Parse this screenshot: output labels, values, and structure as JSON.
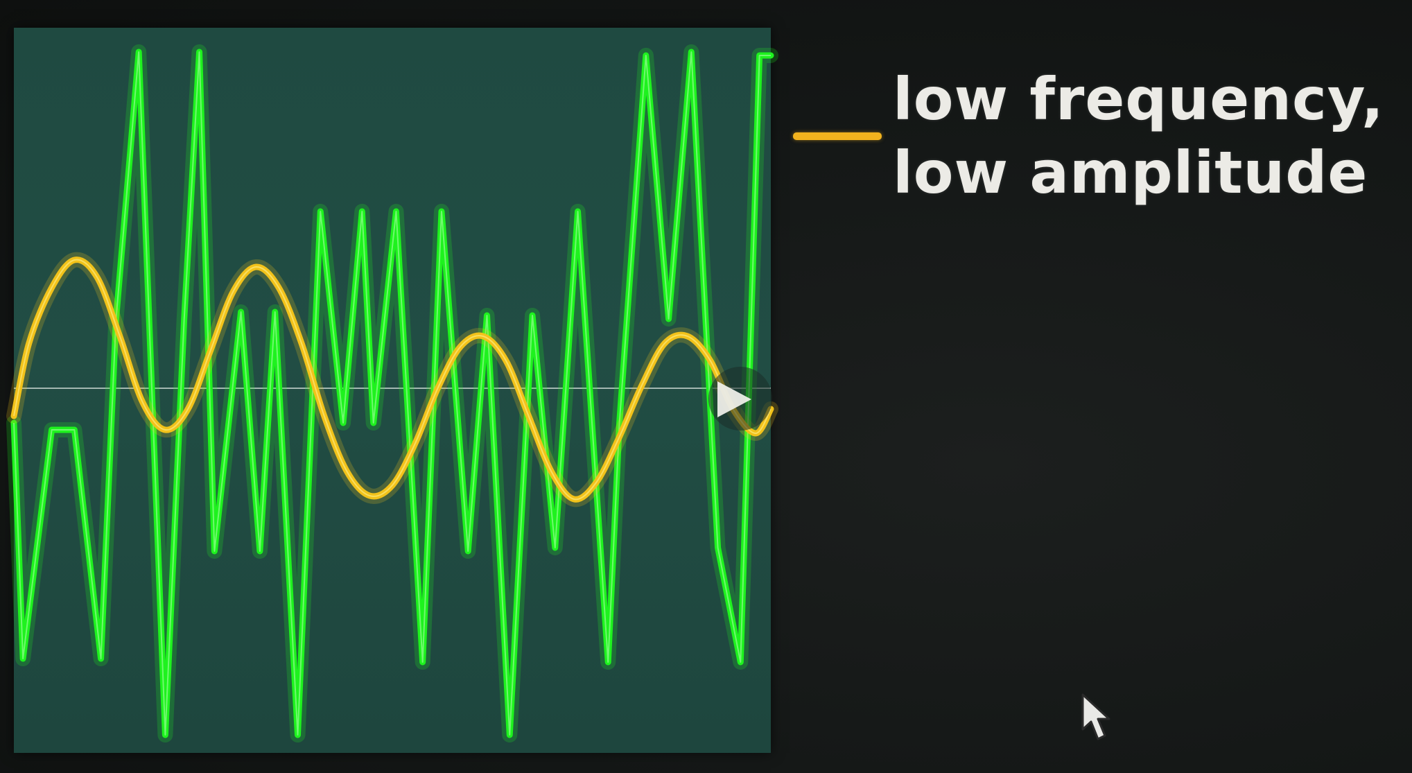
{
  "legend": {
    "line1": "low frequency,",
    "line2": "low amplitude",
    "swatch_color": "#f2b31e"
  },
  "icons": {
    "play": "play-triangle-icon",
    "cursor": "mouse-pointer-icon"
  },
  "colors": {
    "background": "#141716",
    "plot_background": "#214d44",
    "zero_line": "#d0dcd6",
    "low_signal": "#f2c21a",
    "complex_signal": "#1ef21e"
  },
  "chart_data": {
    "type": "line",
    "xlim": [
      0,
      1
    ],
    "ylim": [
      -1,
      1
    ],
    "grid": false,
    "legend_position": "right",
    "series": [
      {
        "name": "low frequency, low amplitude",
        "color": "#f2c21a",
        "x": [
          0.0,
          0.02,
          0.05,
          0.08,
          0.11,
          0.14,
          0.17,
          0.2,
          0.23,
          0.26,
          0.29,
          0.32,
          0.35,
          0.38,
          0.41,
          0.44,
          0.47,
          0.5,
          0.53,
          0.56,
          0.59,
          0.62,
          0.65,
          0.68,
          0.71,
          0.74,
          0.77,
          0.8,
          0.83,
          0.86,
          0.89,
          0.92,
          0.95,
          0.98,
          1.0
        ],
        "y": [
          -0.08,
          0.13,
          0.29,
          0.37,
          0.32,
          0.15,
          -0.04,
          -0.12,
          -0.06,
          0.11,
          0.28,
          0.35,
          0.29,
          0.13,
          -0.08,
          -0.24,
          -0.31,
          -0.28,
          -0.16,
          0.0,
          0.12,
          0.15,
          0.08,
          -0.08,
          -0.24,
          -0.32,
          -0.27,
          -0.14,
          0.01,
          0.13,
          0.15,
          0.08,
          -0.06,
          -0.13,
          -0.06
        ]
      },
      {
        "name": "",
        "color": "#1ef21e",
        "x": [
          0.0,
          0.012,
          0.05,
          0.08,
          0.115,
          0.135,
          0.165,
          0.2,
          0.225,
          0.245,
          0.265,
          0.3,
          0.325,
          0.345,
          0.375,
          0.405,
          0.435,
          0.46,
          0.475,
          0.505,
          0.54,
          0.565,
          0.6,
          0.625,
          0.655,
          0.685,
          0.715,
          0.745,
          0.785,
          0.8,
          0.835,
          0.865,
          0.895,
          0.93,
          0.96,
          0.985,
          1.0
        ],
        "y": [
          -0.1,
          -0.78,
          -0.12,
          -0.12,
          -0.78,
          0.2,
          0.97,
          -1.0,
          0.2,
          0.97,
          -0.47,
          0.22,
          -0.47,
          0.22,
          -1.0,
          0.51,
          -0.1,
          0.51,
          -0.1,
          0.51,
          -0.79,
          0.51,
          -0.47,
          0.21,
          -1.0,
          0.21,
          -0.46,
          0.51,
          -0.79,
          -0.1,
          0.96,
          0.2,
          0.97,
          -0.46,
          -0.79,
          0.96,
          0.96
        ]
      }
    ]
  }
}
